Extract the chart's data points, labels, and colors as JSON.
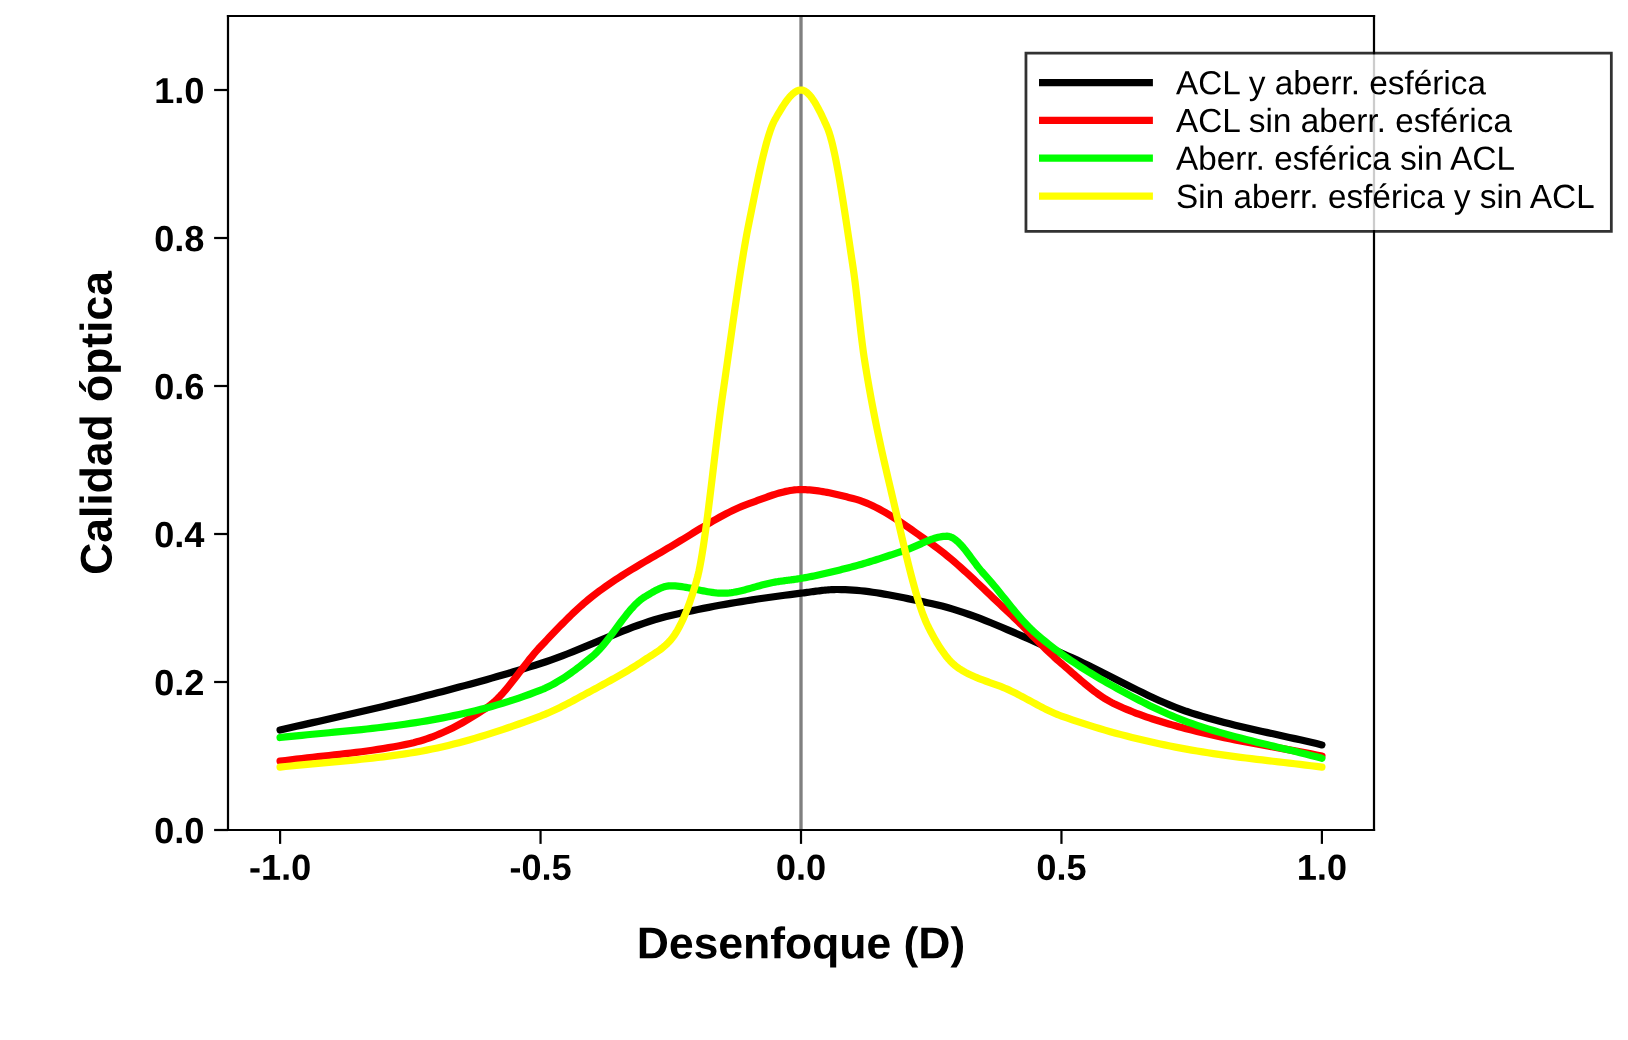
{
  "chart_data": {
    "type": "line",
    "xlabel": "Desenfoque (D)",
    "ylabel": "Calidad óptica",
    "xlim": [
      -1.1,
      1.1
    ],
    "ylim": [
      0,
      1.1
    ],
    "xticks": [
      {
        "value": -1,
        "label": "-1.0"
      },
      {
        "value": -0.5,
        "label": "-0.5"
      },
      {
        "value": 0,
        "label": "0.0"
      },
      {
        "value": 0.5,
        "label": "0.5"
      },
      {
        "value": 1,
        "label": "1.0"
      }
    ],
    "yticks": [
      {
        "value": 0,
        "label": "0.0"
      },
      {
        "value": 0.2,
        "label": "0.2"
      },
      {
        "value": 0.4,
        "label": "0.4"
      },
      {
        "value": 0.6,
        "label": "0.6"
      },
      {
        "value": 0.8,
        "label": "0.8"
      },
      {
        "value": 1,
        "label": "1.0"
      }
    ],
    "grid": false,
    "legend": "top right",
    "marker": "none",
    "line_style": "solid",
    "ref_lines": [
      {
        "axis": "x",
        "value": 0,
        "color": "#808080"
      }
    ],
    "series": [
      {
        "name": "ACL y aberr. esférica",
        "color": "#000000",
        "x": [
          -1,
          -0.75,
          -0.5,
          -0.25,
          0,
          0.07,
          0.25,
          0.5,
          0.75,
          1
        ],
        "values": [
          0.135,
          0.176,
          0.225,
          0.29,
          0.32,
          0.325,
          0.306,
          0.239,
          0.158,
          0.115
        ]
      },
      {
        "name": "ACL sin aberr. esférica",
        "color": "#ff0000",
        "x": [
          -1,
          -0.75,
          -0.6,
          -0.5,
          -0.4,
          -0.25,
          -0.1,
          0,
          0.1,
          0.25,
          0.4,
          0.5,
          0.6,
          0.75,
          1
        ],
        "values": [
          0.093,
          0.117,
          0.167,
          0.248,
          0.316,
          0.383,
          0.441,
          0.46,
          0.448,
          0.387,
          0.293,
          0.225,
          0.171,
          0.135,
          0.1
        ]
      },
      {
        "name": "Aberr. esférica sin ACL",
        "color": "#00ff00",
        "x": [
          -1,
          -0.75,
          -0.5,
          -0.4,
          -0.3,
          -0.25,
          -0.15,
          -0.05,
          0,
          0.1,
          0.2,
          0.28,
          0.35,
          0.45,
          0.6,
          0.75,
          1
        ],
        "values": [
          0.125,
          0.144,
          0.189,
          0.235,
          0.315,
          0.33,
          0.32,
          0.335,
          0.34,
          0.356,
          0.378,
          0.397,
          0.347,
          0.266,
          0.194,
          0.144,
          0.097
        ]
      },
      {
        "name": "Sin aberr. esférica y sin ACL",
        "color": "#ffff00",
        "x": [
          -1,
          -0.75,
          -0.5,
          -0.4,
          -0.3,
          -0.25,
          -0.2,
          -0.15,
          -0.1,
          -0.05,
          0,
          0.05,
          0.1,
          0.122,
          0.174,
          0.244,
          0.3,
          0.4,
          0.5,
          0.75,
          1
        ],
        "values": [
          0.085,
          0.104,
          0.154,
          0.189,
          0.23,
          0.257,
          0.338,
          0.59,
          0.82,
          0.96,
          1.0,
          0.95,
          0.76,
          0.635,
          0.455,
          0.275,
          0.22,
          0.189,
          0.154,
          0.108,
          0.085
        ]
      }
    ]
  }
}
